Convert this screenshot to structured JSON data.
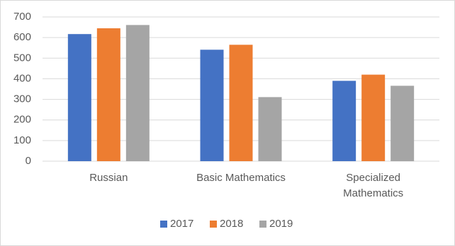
{
  "chart_data": {
    "type": "bar",
    "categories": [
      "Russian",
      "Basic Mathematics",
      "Specialized Mathematics"
    ],
    "series": [
      {
        "name": "2017",
        "color": "#4472c4",
        "values": [
          617,
          541,
          390
        ]
      },
      {
        "name": "2018",
        "color": "#ed7d31",
        "values": [
          645,
          565,
          420
        ]
      },
      {
        "name": "2019",
        "color": "#a5a5a5",
        "values": [
          661,
          311,
          366
        ]
      }
    ],
    "ylim": [
      0,
      700
    ],
    "yticks": [
      0,
      100,
      200,
      300,
      400,
      500,
      600,
      700
    ],
    "grid": true,
    "legend": "bottom"
  }
}
